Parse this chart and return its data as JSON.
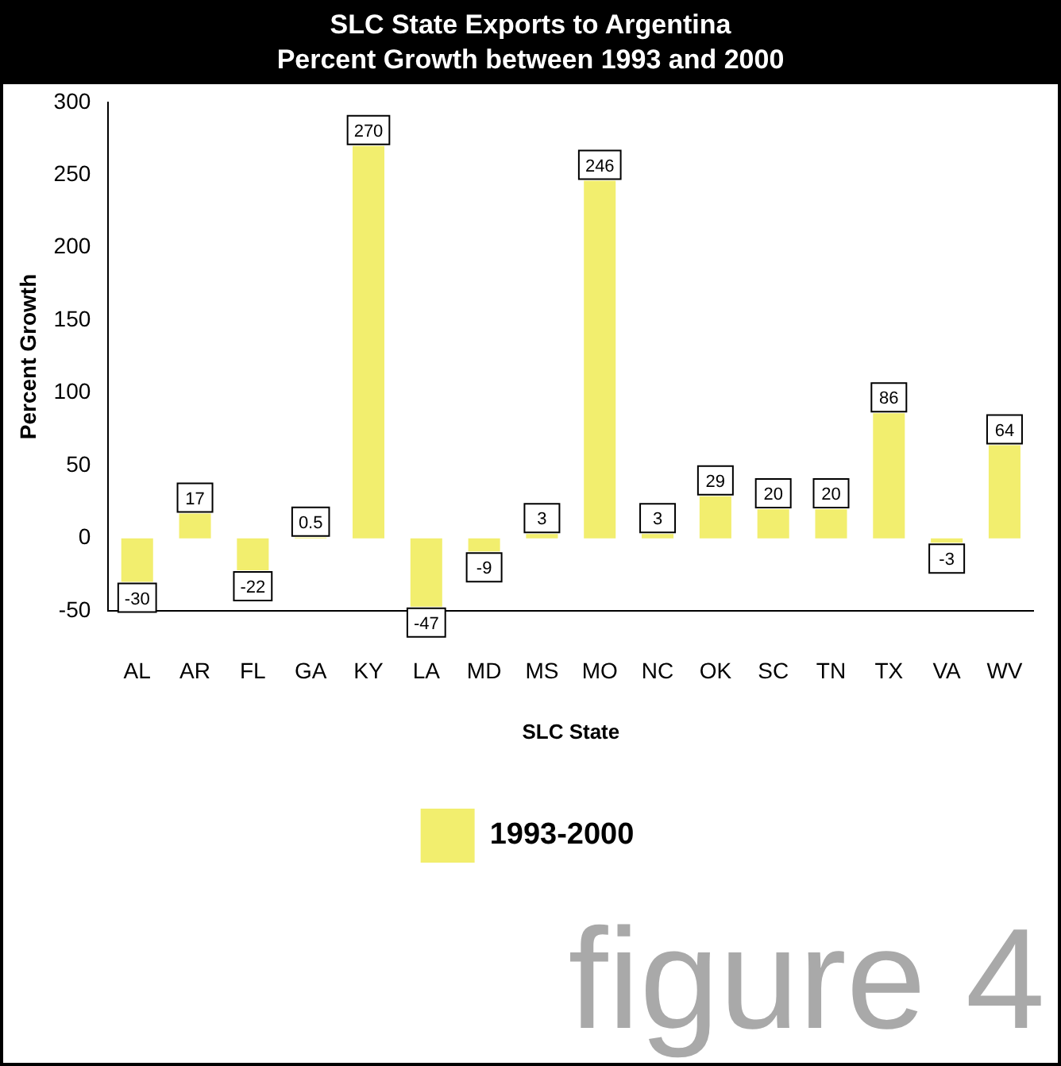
{
  "chart_data": {
    "type": "bar",
    "title": "SLC State Exports to Argentina\nPercent Growth between 1993 and 2000",
    "xlabel": "SLC State",
    "ylabel": "Percent Growth",
    "categories": [
      "AL",
      "AR",
      "FL",
      "GA",
      "KY",
      "LA",
      "MD",
      "MS",
      "MO",
      "NC",
      "OK",
      "SC",
      "TN",
      "TX",
      "VA",
      "WV"
    ],
    "series": [
      {
        "name": "1993-2000",
        "color": "#f2ee6e",
        "values": [
          -30,
          17,
          -22,
          0.5,
          270,
          -47,
          -9,
          3,
          246,
          3,
          29,
          20,
          20,
          86,
          -3,
          64
        ]
      }
    ],
    "ylim": [
      -50,
      300
    ],
    "yticks": [
      -50,
      0,
      50,
      100,
      150,
      200,
      250,
      300
    ],
    "grid": false,
    "legend": "bottom",
    "data_labels": true,
    "annotations": [
      "figure 4"
    ]
  }
}
